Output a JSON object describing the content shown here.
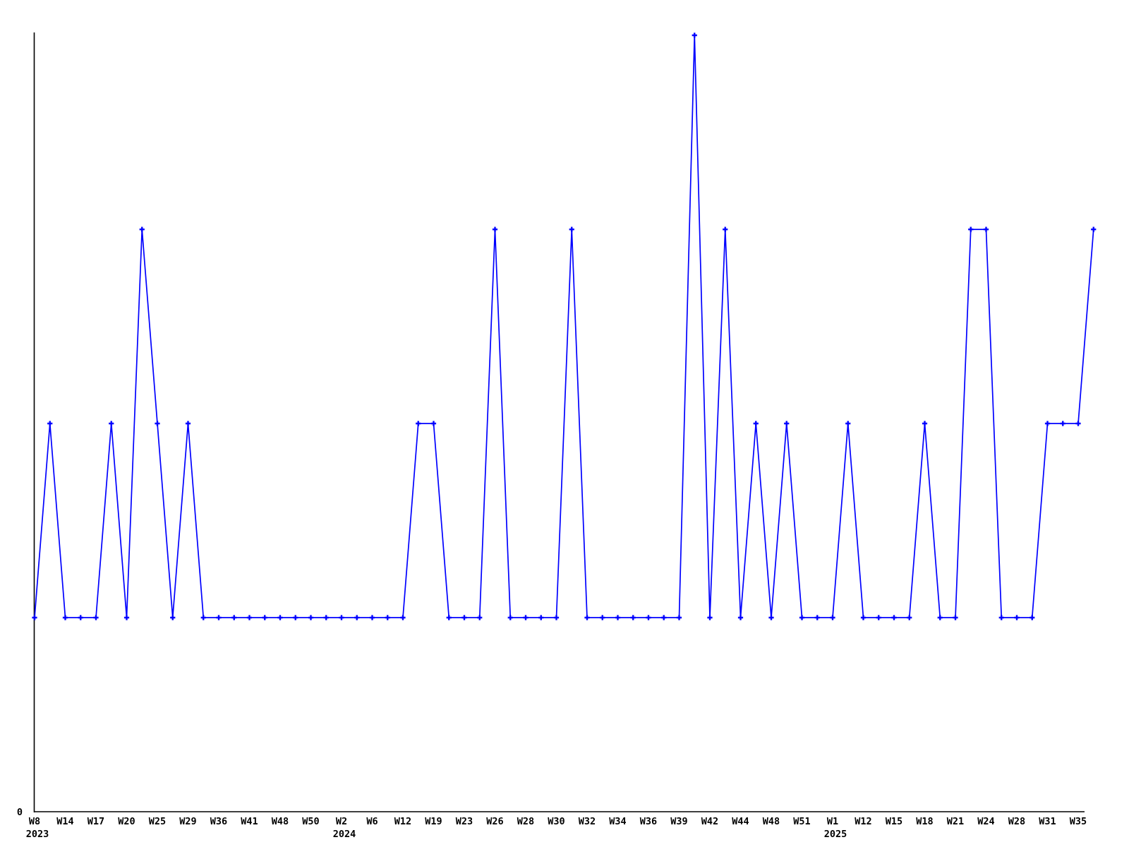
{
  "chart_data": {
    "type": "line",
    "title": "",
    "xlabel": "",
    "ylabel": "",
    "legend": "none",
    "grid": false,
    "line_color": "#0000ff",
    "axis_color": "#000000",
    "marker_style": "plus",
    "y_axis": {
      "zero_label": "0",
      "ylim": [
        0,
        4.05
      ],
      "visible_tick_labels": [
        "0"
      ]
    },
    "x_tick_labels": [
      "W8",
      "W14",
      "W17",
      "W20",
      "W25",
      "W29",
      "W36",
      "W41",
      "W48",
      "W50",
      "W2",
      "W6",
      "W12",
      "W19",
      "W23",
      "W26",
      "W28",
      "W30",
      "W32",
      "W34",
      "W36",
      "W39",
      "W42",
      "W44",
      "W48",
      "W51",
      "W1",
      "W12",
      "W15",
      "W18",
      "W21",
      "W24",
      "W28",
      "W31",
      "W35"
    ],
    "x_tick_note": "tick labels appear under every second data point; points between ticks are unlabeled weeks",
    "year_labels": [
      {
        "tick_index": 0,
        "text": "2023"
      },
      {
        "tick_index": 10,
        "text": "2024"
      },
      {
        "tick_index": 26,
        "text": "2025"
      }
    ],
    "values": [
      1,
      2,
      1,
      1,
      1,
      2,
      1,
      3,
      2,
      1,
      2,
      1,
      1,
      1,
      1,
      1,
      1,
      1,
      1,
      1,
      1,
      1,
      1,
      1,
      1,
      2,
      2,
      1,
      1,
      1,
      3,
      1,
      1,
      1,
      1,
      3,
      1,
      1,
      1,
      1,
      1,
      1,
      1,
      4,
      1,
      3,
      1,
      2,
      1,
      2,
      1,
      1,
      1,
      2,
      1,
      1,
      1,
      1,
      2,
      1,
      1,
      3,
      3,
      1,
      1,
      1,
      2,
      2,
      2,
      3
    ]
  }
}
